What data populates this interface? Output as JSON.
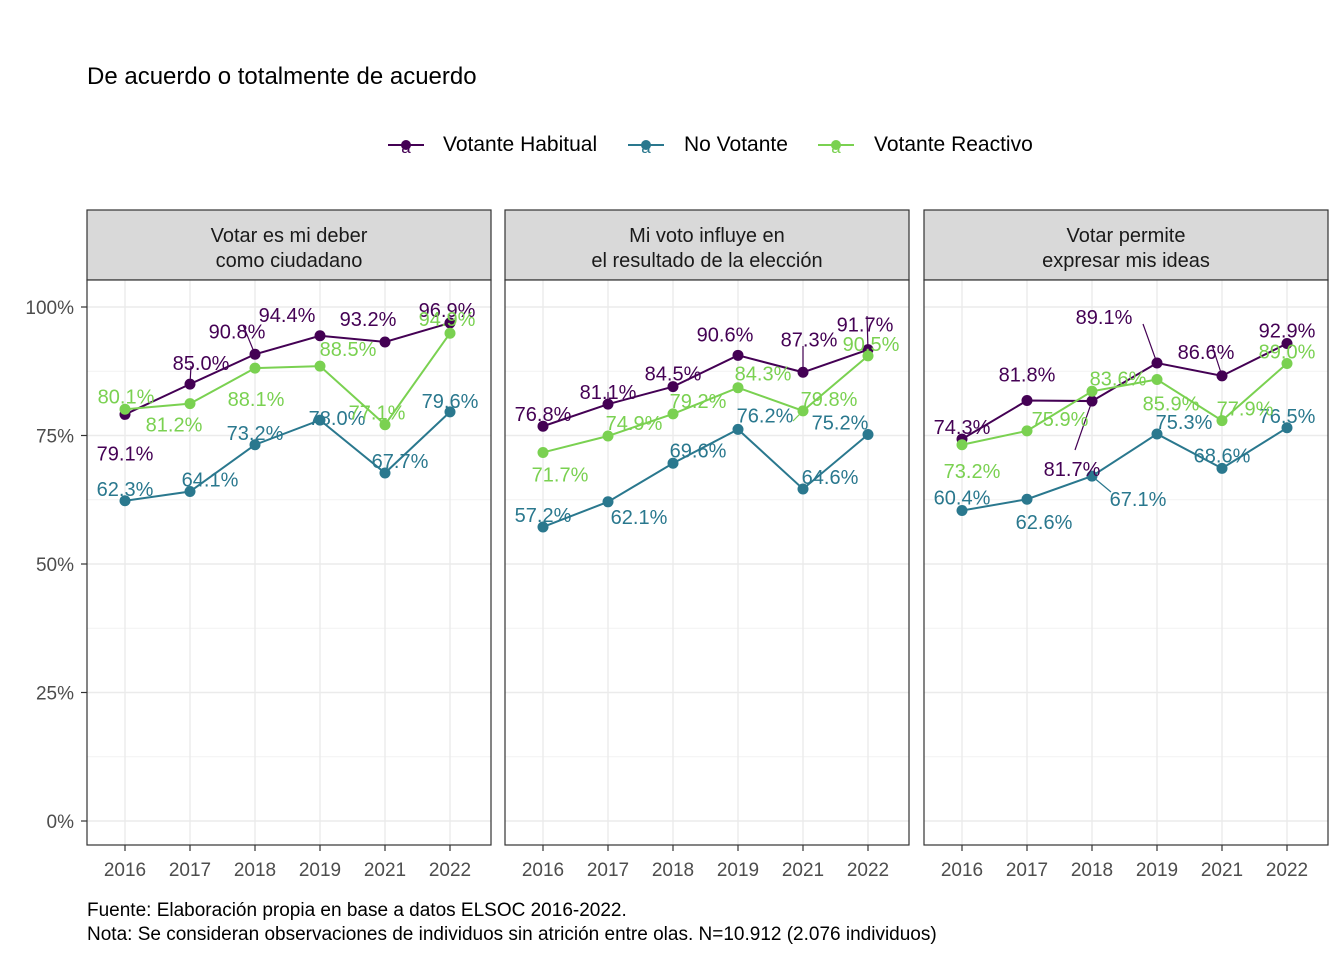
{
  "chart_data": {
    "type": "line",
    "title": "De acuerdo o totalmente de acuerdo",
    "x": [
      "2016",
      "2017",
      "2018",
      "2019",
      "2021",
      "2022"
    ],
    "ylim": [
      0,
      100
    ],
    "y_ticks": [
      "0%",
      "25%",
      "50%",
      "75%",
      "100%"
    ],
    "legend": {
      "position": "top",
      "entries": [
        "Votante Habitual",
        "No Votante",
        "Votante Reactivo"
      ],
      "key_glyph": "a"
    },
    "colors": {
      "Votante Habitual": "#440154",
      "No Votante": "#2A788E",
      "Votante Reactivo": "#7AD151"
    },
    "grid": true,
    "facets": [
      {
        "strip": [
          "Votar es mi deber",
          "como ciudadano"
        ],
        "series": [
          {
            "name": "Votante Habitual",
            "values": [
              79.1,
              85.0,
              90.8,
              94.4,
              93.2,
              96.9
            ],
            "labels": [
              "79.1%",
              "85.0%",
              "90.8%",
              "94.4%",
              "93.2%",
              "96.9%"
            ]
          },
          {
            "name": "No Votante",
            "values": [
              62.3,
              64.1,
              73.2,
              78.0,
              67.7,
              79.6
            ],
            "labels": [
              "62.3%",
              "64.1%",
              "73.2%",
              "78.0%",
              "67.7%",
              "79.6%"
            ]
          },
          {
            "name": "Votante Reactivo",
            "values": [
              80.1,
              81.2,
              88.1,
              88.5,
              77.1,
              94.9
            ],
            "labels": [
              "80.1%",
              "81.2%",
              "88.1%",
              "88.5%",
              "77.1%",
              "94.9%"
            ]
          }
        ]
      },
      {
        "strip": [
          "Mi voto influye en",
          "el resultado de la elección"
        ],
        "series": [
          {
            "name": "Votante Habitual",
            "values": [
              76.8,
              81.1,
              84.5,
              90.6,
              87.3,
              91.7
            ],
            "labels": [
              "76.8%",
              "81.1%",
              "84.5%",
              "90.6%",
              "87.3%",
              "91.7%"
            ]
          },
          {
            "name": "No Votante",
            "values": [
              57.2,
              62.1,
              69.6,
              76.2,
              64.6,
              75.2
            ],
            "labels": [
              "57.2%",
              "62.1%",
              "69.6%",
              "76.2%",
              "64.6%",
              "75.2%"
            ]
          },
          {
            "name": "Votante Reactivo",
            "values": [
              71.7,
              74.9,
              79.2,
              84.3,
              79.8,
              90.5
            ],
            "labels": [
              "71.7%",
              "74.9%",
              "79.2%",
              "84.3%",
              "79.8%",
              "90.5%"
            ]
          }
        ]
      },
      {
        "strip": [
          "Votar permite",
          "expresar mis ideas"
        ],
        "series": [
          {
            "name": "Votante Habitual",
            "values": [
              74.3,
              81.8,
              81.7,
              89.1,
              86.6,
              92.9
            ],
            "labels": [
              "74.3%",
              "81.8%",
              "81.7%",
              "89.1%",
              "86.6%",
              "92.9%"
            ]
          },
          {
            "name": "No Votante",
            "values": [
              60.4,
              62.6,
              67.1,
              75.3,
              68.6,
              76.5
            ],
            "labels": [
              "60.4%",
              "62.6%",
              "67.1%",
              "75.3%",
              "68.6%",
              "76.5%"
            ]
          },
          {
            "name": "Votante Reactivo",
            "values": [
              73.2,
              75.9,
              83.6,
              85.9,
              77.9,
              89.0
            ],
            "labels": [
              "73.2%",
              "75.9%",
              "83.6%",
              "85.9%",
              "77.9%",
              "89.0%"
            ]
          }
        ]
      }
    ]
  },
  "caption": [
    "Fuente: Elaboración propia en base a datos ELSOC 2016-2022.",
    "Nota: Se consideran observaciones de individuos sin atrición entre olas. N=10.912 (2.076 individuos)"
  ]
}
